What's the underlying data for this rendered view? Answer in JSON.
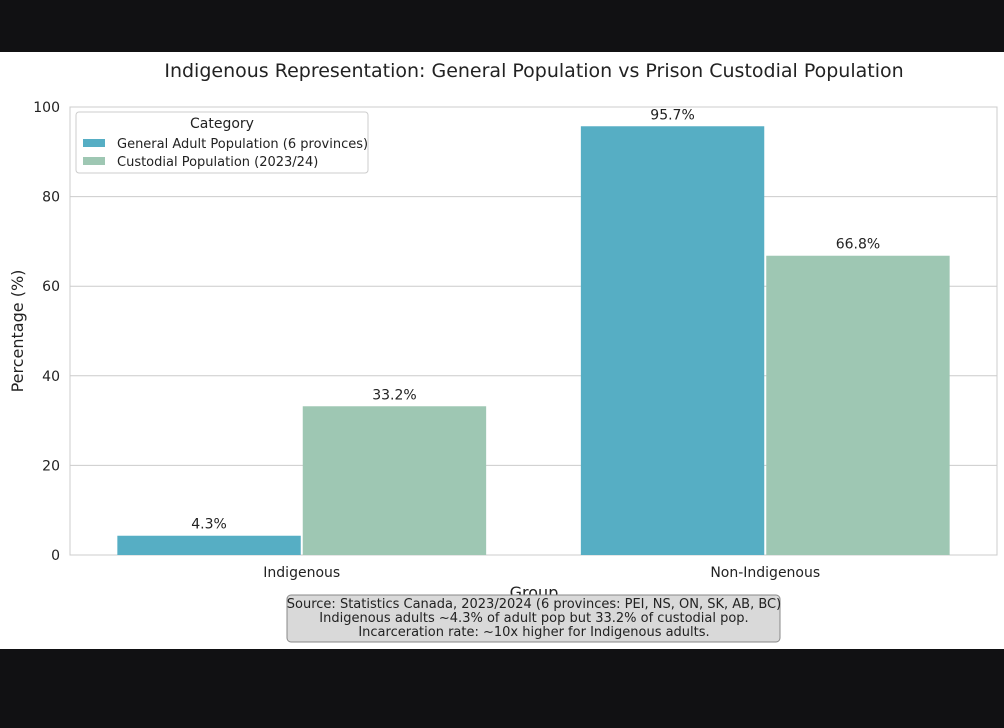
{
  "chart_data": {
    "type": "bar",
    "title": "Indigenous Representation: General Population vs Prison Custodial Population",
    "xlabel": "Group",
    "ylabel": "Percentage (%)",
    "categories": [
      "Indigenous",
      "Non-Indigenous"
    ],
    "series": [
      {
        "name": "General Adult Population (6 provinces)",
        "values": [
          4.3,
          95.7
        ],
        "labels": [
          "4.3%",
          "95.7%"
        ],
        "color": "#56aec4"
      },
      {
        "name": "Custodial Population (2023/24)",
        "values": [
          33.2,
          66.8
        ],
        "labels": [
          "33.2%",
          "66.8%"
        ],
        "color": "#9ec7b3"
      }
    ],
    "ylim": [
      0,
      100
    ],
    "yticks": [
      0,
      20,
      40,
      60,
      80,
      100
    ],
    "grid": true,
    "legend": {
      "title": "Category",
      "placement": "top-left"
    },
    "annotation": [
      "Source: Statistics Canada, 2023/2024 (6 provinces: PEI, NS, ON, SK, AB, BC)",
      "Indigenous adults ~4.3% of adult pop but 33.2% of custodial pop.",
      "Incarceration rate: ~10x higher for Indigenous adults."
    ]
  }
}
